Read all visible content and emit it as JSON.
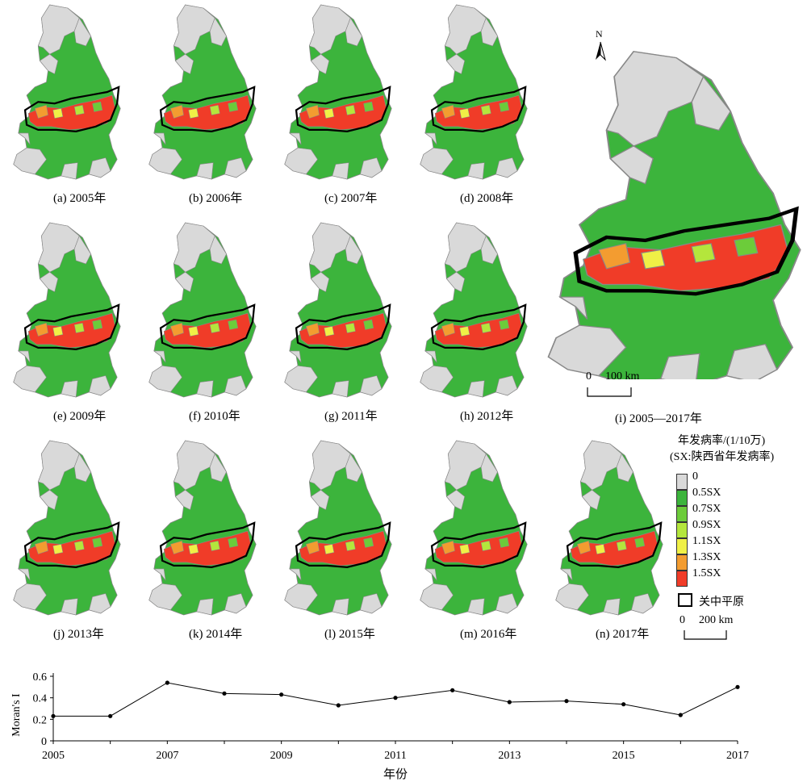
{
  "panels": [
    {
      "label": "(a) 2005年"
    },
    {
      "label": "(b) 2006年"
    },
    {
      "label": "(c) 2007年"
    },
    {
      "label": "(d) 2008年"
    },
    {
      "label": "(e) 2009年"
    },
    {
      "label": "(f) 2010年"
    },
    {
      "label": "(g) 2011年"
    },
    {
      "label": "(h) 2012年"
    },
    {
      "label": "(j) 2013年"
    },
    {
      "label": "(k) 2014年"
    },
    {
      "label": "(l) 2015年"
    },
    {
      "label": "(m) 2016年"
    },
    {
      "label": "(n) 2017年"
    }
  ],
  "big_map": {
    "label": "(i) 2005—2017年",
    "north": "N",
    "scale_zero": "0",
    "scale_value": "100 km"
  },
  "legend": {
    "title_line1": "年发病率/(1/10万)",
    "title_line2": "(SX:陕西省年发病率)",
    "items": [
      {
        "label": "0",
        "color": "#d9d9d9"
      },
      {
        "label": "0.5SX",
        "color": "#3cb43c"
      },
      {
        "label": "0.7SX",
        "color": "#6ccc3a"
      },
      {
        "label": "0.9SX",
        "color": "#b4e63c"
      },
      {
        "label": "1.1SX",
        "color": "#f0f046"
      },
      {
        "label": "1.3SX",
        "color": "#f39c30"
      },
      {
        "label": "1.5SX",
        "color": "#f03c28"
      }
    ],
    "boundary_label": "关中平原",
    "scale_zero": "0",
    "scale_value": "200 km"
  },
  "chart_data": {
    "type": "line",
    "x": [
      2005,
      2006,
      2007,
      2008,
      2009,
      2010,
      2011,
      2012,
      2013,
      2014,
      2015,
      2016,
      2017
    ],
    "values": [
      0.23,
      0.23,
      0.54,
      0.44,
      0.43,
      0.33,
      0.4,
      0.47,
      0.36,
      0.37,
      0.34,
      0.24,
      0.5
    ],
    "xlabel": "年份",
    "ylabel": "Moran's I",
    "ylim": [
      0,
      0.6
    ],
    "yticks": [
      "0",
      "0.2",
      "0.4",
      "0.6"
    ],
    "xticks": [
      "2005",
      "2007",
      "2009",
      "2011",
      "2013",
      "2015",
      "2017"
    ]
  }
}
